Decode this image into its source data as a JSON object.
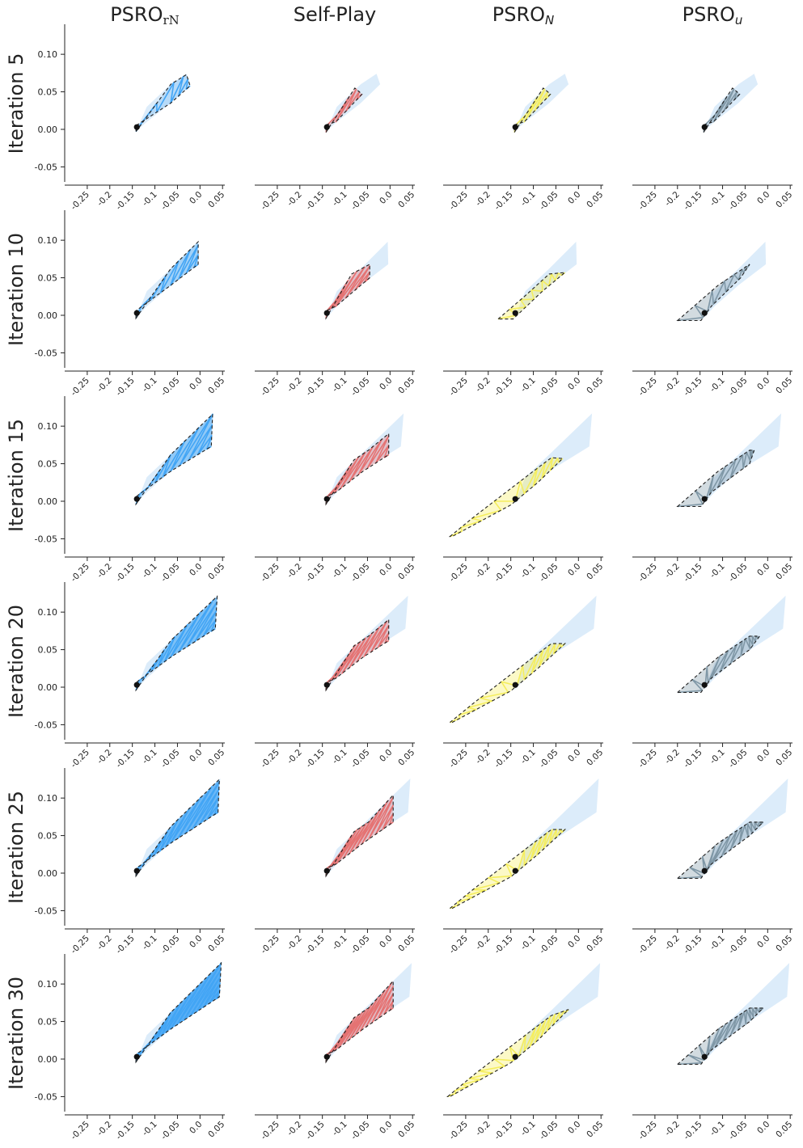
{
  "columns": [
    {
      "base": "PSRO",
      "sub": "rN",
      "sub_style": "upright"
    },
    {
      "base": "Self-Play",
      "sub": "",
      "sub_style": "none"
    },
    {
      "base": "PSRO",
      "sub": "N",
      "sub_style": "italic"
    },
    {
      "base": "PSRO",
      "sub": "u",
      "sub_style": "italic"
    }
  ],
  "rows": [
    "Iteration 5",
    "Iteration 10",
    "Iteration 15",
    "Iteration 20",
    "Iteration 25",
    "Iteration 30"
  ],
  "colors": {
    "psro_rn": "#42a5f5",
    "self_play": "#e57373",
    "psro_n": "#f5ee5e",
    "psro_u": "#7f97a6",
    "reference_region": "#dcecfa",
    "hull_outline": "#222222",
    "start_point": "#111111"
  },
  "chart_data": {
    "type": "scatter",
    "description_axes": {
      "xticks": [
        "-0.25",
        "-0.2",
        "-0.15",
        "-0.1",
        "-0.05",
        "0.0",
        "0.05"
      ],
      "yticks": [
        "0.10",
        "0.05",
        "0.00",
        "-0.05"
      ],
      "xlim": [
        -0.3,
        0.055
      ],
      "ylim": [
        -0.07,
        0.14
      ]
    },
    "start_point": [
      -0.14,
      0.003
    ],
    "reference_region_by_row": [
      [
        [
          -0.142,
          -0.003
        ],
        [
          -0.118,
          0.03
        ],
        [
          -0.065,
          0.06
        ],
        [
          -0.03,
          0.074
        ],
        [
          -0.022,
          0.06
        ],
        [
          -0.065,
          0.035
        ],
        [
          -0.118,
          0.01
        ]
      ],
      [
        [
          -0.142,
          -0.004
        ],
        [
          -0.118,
          0.032
        ],
        [
          -0.065,
          0.062
        ],
        [
          -0.005,
          0.098
        ],
        [
          -0.004,
          0.068
        ],
        [
          -0.065,
          0.04
        ],
        [
          -0.118,
          0.012
        ]
      ],
      [
        [
          -0.142,
          -0.004
        ],
        [
          -0.118,
          0.032
        ],
        [
          -0.065,
          0.062
        ],
        [
          0.03,
          0.117
        ],
        [
          0.024,
          0.073
        ],
        [
          -0.065,
          0.04
        ],
        [
          -0.118,
          0.012
        ]
      ],
      [
        [
          -0.142,
          -0.004
        ],
        [
          -0.118,
          0.032
        ],
        [
          -0.065,
          0.062
        ],
        [
          0.04,
          0.122
        ],
        [
          0.034,
          0.078
        ],
        [
          -0.065,
          0.04
        ],
        [
          -0.118,
          0.012
        ]
      ],
      [
        [
          -0.142,
          -0.004
        ],
        [
          -0.118,
          0.032
        ],
        [
          -0.065,
          0.062
        ],
        [
          0.045,
          0.126
        ],
        [
          0.04,
          0.081
        ],
        [
          -0.065,
          0.04
        ],
        [
          -0.118,
          0.012
        ]
      ],
      [
        [
          -0.142,
          -0.004
        ],
        [
          -0.118,
          0.032
        ],
        [
          -0.065,
          0.062
        ],
        [
          0.048,
          0.128
        ],
        [
          0.043,
          0.083
        ],
        [
          -0.065,
          0.04
        ],
        [
          -0.118,
          0.012
        ]
      ]
    ],
    "hulls": [
      [
        [
          [
            -0.142,
            -0.003
          ],
          [
            -0.065,
            0.06
          ],
          [
            -0.03,
            0.073
          ],
          [
            -0.022,
            0.058
          ],
          [
            -0.065,
            0.035
          ],
          [
            -0.142,
            0.005
          ]
        ],
        [
          [
            -0.142,
            -0.004
          ],
          [
            -0.078,
            0.055
          ],
          [
            -0.062,
            0.047
          ],
          [
            -0.12,
            0.01
          ],
          [
            -0.142,
            0.006
          ]
        ],
        [
          [
            -0.142,
            -0.004
          ],
          [
            -0.078,
            0.055
          ],
          [
            -0.062,
            0.047
          ],
          [
            -0.12,
            0.01
          ],
          [
            -0.142,
            0.006
          ]
        ],
        [
          [
            -0.142,
            -0.004
          ],
          [
            -0.078,
            0.055
          ],
          [
            -0.062,
            0.047
          ],
          [
            -0.12,
            0.01
          ],
          [
            -0.142,
            0.006
          ]
        ]
      ],
      [
        [
          [
            -0.142,
            -0.004
          ],
          [
            -0.065,
            0.062
          ],
          [
            -0.004,
            0.098
          ],
          [
            -0.004,
            0.068
          ],
          [
            -0.065,
            0.04
          ],
          [
            -0.142,
            0.006
          ]
        ],
        [
          [
            -0.142,
            -0.004
          ],
          [
            -0.085,
            0.055
          ],
          [
            -0.045,
            0.068
          ],
          [
            -0.045,
            0.05
          ],
          [
            -0.12,
            0.012
          ],
          [
            -0.142,
            0.006
          ]
        ],
        [
          [
            -0.178,
            -0.005
          ],
          [
            -0.12,
            0.025
          ],
          [
            -0.065,
            0.055
          ],
          [
            -0.03,
            0.057
          ],
          [
            -0.08,
            0.032
          ],
          [
            -0.145,
            -0.005
          ]
        ],
        [
          [
            -0.2,
            -0.007
          ],
          [
            -0.11,
            0.04
          ],
          [
            -0.06,
            0.06
          ],
          [
            -0.04,
            0.068
          ],
          [
            -0.06,
            0.05
          ],
          [
            -0.125,
            0.012
          ],
          [
            -0.148,
            -0.007
          ]
        ]
      ],
      [
        [
          [
            -0.142,
            -0.004
          ],
          [
            -0.065,
            0.062
          ],
          [
            0.028,
            0.116
          ],
          [
            0.025,
            0.073
          ],
          [
            -0.065,
            0.04
          ],
          [
            -0.142,
            0.006
          ]
        ],
        [
          [
            -0.142,
            -0.004
          ],
          [
            -0.08,
            0.055
          ],
          [
            -0.048,
            0.068
          ],
          [
            -0.003,
            0.09
          ],
          [
            -0.003,
            0.062
          ],
          [
            -0.06,
            0.04
          ],
          [
            -0.12,
            0.012
          ],
          [
            -0.142,
            0.006
          ]
        ],
        [
          [
            -0.285,
            -0.047
          ],
          [
            -0.23,
            -0.02
          ],
          [
            -0.1,
            0.04
          ],
          [
            -0.06,
            0.058
          ],
          [
            -0.035,
            0.057
          ],
          [
            -0.09,
            0.025
          ],
          [
            -0.15,
            -0.005
          ],
          [
            -0.28,
            -0.047
          ]
        ],
        [
          [
            -0.2,
            -0.007
          ],
          [
            -0.11,
            0.04
          ],
          [
            -0.06,
            0.06
          ],
          [
            -0.04,
            0.068
          ],
          [
            -0.03,
            0.068
          ],
          [
            -0.04,
            0.05
          ],
          [
            -0.125,
            0.012
          ],
          [
            -0.148,
            -0.007
          ]
        ]
      ],
      [
        [
          [
            -0.142,
            -0.004
          ],
          [
            -0.065,
            0.062
          ],
          [
            0.038,
            0.121
          ],
          [
            0.034,
            0.078
          ],
          [
            -0.065,
            0.04
          ],
          [
            -0.142,
            0.006
          ]
        ],
        [
          [
            -0.142,
            -0.004
          ],
          [
            -0.08,
            0.055
          ],
          [
            -0.048,
            0.068
          ],
          [
            -0.003,
            0.09
          ],
          [
            -0.003,
            0.062
          ],
          [
            -0.06,
            0.04
          ],
          [
            -0.12,
            0.012
          ],
          [
            -0.142,
            0.006
          ]
        ],
        [
          [
            -0.285,
            -0.047
          ],
          [
            -0.23,
            -0.02
          ],
          [
            -0.1,
            0.04
          ],
          [
            -0.06,
            0.058
          ],
          [
            -0.03,
            0.058
          ],
          [
            -0.09,
            0.025
          ],
          [
            -0.15,
            -0.005
          ],
          [
            -0.28,
            -0.047
          ]
        ],
        [
          [
            -0.2,
            -0.007
          ],
          [
            -0.11,
            0.04
          ],
          [
            -0.06,
            0.06
          ],
          [
            -0.04,
            0.068
          ],
          [
            -0.018,
            0.068
          ],
          [
            -0.04,
            0.05
          ],
          [
            -0.125,
            0.012
          ],
          [
            -0.148,
            -0.007
          ]
        ]
      ],
      [
        [
          [
            -0.142,
            -0.004
          ],
          [
            -0.065,
            0.062
          ],
          [
            0.043,
            0.125
          ],
          [
            0.04,
            0.081
          ],
          [
            -0.065,
            0.04
          ],
          [
            -0.142,
            0.006
          ]
        ],
        [
          [
            -0.142,
            -0.004
          ],
          [
            -0.08,
            0.055
          ],
          [
            -0.048,
            0.068
          ],
          [
            0.007,
            0.104
          ],
          [
            0.007,
            0.068
          ],
          [
            -0.06,
            0.04
          ],
          [
            -0.12,
            0.012
          ],
          [
            -0.142,
            0.006
          ]
        ],
        [
          [
            -0.285,
            -0.047
          ],
          [
            -0.23,
            -0.02
          ],
          [
            -0.1,
            0.04
          ],
          [
            -0.06,
            0.058
          ],
          [
            -0.03,
            0.058
          ],
          [
            -0.09,
            0.025
          ],
          [
            -0.15,
            -0.005
          ],
          [
            -0.28,
            -0.047
          ]
        ],
        [
          [
            -0.2,
            -0.007
          ],
          [
            -0.11,
            0.04
          ],
          [
            -0.06,
            0.06
          ],
          [
            -0.04,
            0.068
          ],
          [
            -0.01,
            0.068
          ],
          [
            -0.04,
            0.05
          ],
          [
            -0.125,
            0.012
          ],
          [
            -0.148,
            -0.007
          ]
        ]
      ],
      [
        [
          [
            -0.142,
            -0.004
          ],
          [
            -0.065,
            0.062
          ],
          [
            0.047,
            0.128
          ],
          [
            0.043,
            0.083
          ],
          [
            -0.065,
            0.04
          ],
          [
            -0.142,
            0.006
          ]
        ],
        [
          [
            -0.142,
            -0.004
          ],
          [
            -0.08,
            0.055
          ],
          [
            -0.048,
            0.068
          ],
          [
            0.007,
            0.104
          ],
          [
            0.007,
            0.068
          ],
          [
            -0.06,
            0.04
          ],
          [
            -0.12,
            0.012
          ],
          [
            -0.142,
            0.006
          ]
        ],
        [
          [
            -0.29,
            -0.05
          ],
          [
            -0.23,
            -0.02
          ],
          [
            -0.1,
            0.04
          ],
          [
            -0.06,
            0.058
          ],
          [
            -0.022,
            0.066
          ],
          [
            -0.09,
            0.025
          ],
          [
            -0.15,
            -0.005
          ],
          [
            -0.285,
            -0.05
          ]
        ],
        [
          [
            -0.2,
            -0.007
          ],
          [
            -0.11,
            0.04
          ],
          [
            -0.06,
            0.06
          ],
          [
            -0.04,
            0.068
          ],
          [
            -0.01,
            0.068
          ],
          [
            -0.04,
            0.05
          ],
          [
            -0.125,
            0.012
          ],
          [
            -0.148,
            -0.007
          ]
        ]
      ]
    ]
  }
}
